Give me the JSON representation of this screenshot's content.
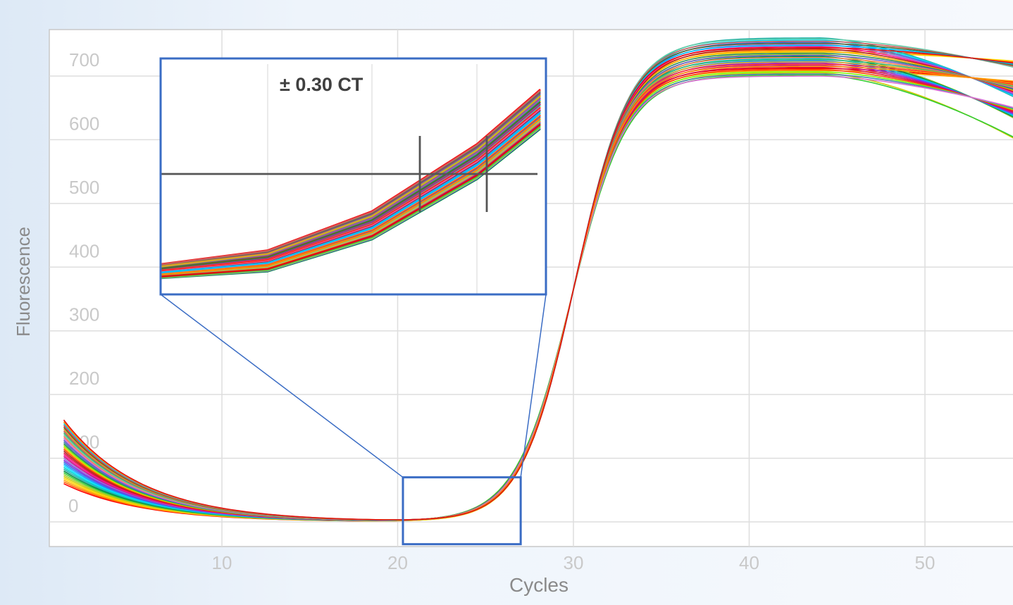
{
  "chart_data": {
    "type": "line",
    "xlabel": "Cycles",
    "ylabel": "Fluorescence",
    "x_ticks": [
      10,
      20,
      30,
      40,
      50
    ],
    "y_ticks": [
      0,
      100,
      200,
      300,
      400,
      500,
      600,
      700
    ],
    "xlim": [
      0.2,
      55
    ],
    "ylim": [
      -25,
      770
    ],
    "grid": true,
    "curve_model": {
      "baseline_start_range": [
        60,
        160
      ],
      "baseline_decay_cycles": 4.5,
      "midpoint_cycle": 30,
      "slope": 1.55,
      "plateau_range": [
        700,
        760
      ],
      "late_decline_range": [
        0.3,
        2.2
      ]
    },
    "series_count": 36,
    "series_colors": [
      "#ff0000",
      "#ff6600",
      "#ffa500",
      "#ffd700",
      "#cccc00",
      "#9acd32",
      "#33cc33",
      "#008b45",
      "#20b2aa",
      "#00ced1",
      "#00e5ff",
      "#1e90ff",
      "#4169e1",
      "#8a2be2",
      "#9370db",
      "#c71585",
      "#ff1493",
      "#dc143c",
      "#b22222",
      "#ff4500",
      "#ffb000",
      "#7cfc00",
      "#2e8b57",
      "#4682b4",
      "#6a5acd",
      "#da70d6",
      "#ff7f50",
      "#66cdaa",
      "#3cb371",
      "#cd5c5c",
      "#daa520",
      "#556b2f",
      "#ff3030",
      "#00bfff",
      "#ff8c00",
      "#e01010"
    ],
    "inset": {
      "annotation": "± 0.30 CT",
      "zoom_range_cycles": [
        20.3,
        27
      ],
      "zoom_range_fluorescence": [
        -35,
        70
      ],
      "threshold_line_color": "#555555",
      "ct_marks": 2
    },
    "zoom_box_color": "#3a6cc4"
  }
}
